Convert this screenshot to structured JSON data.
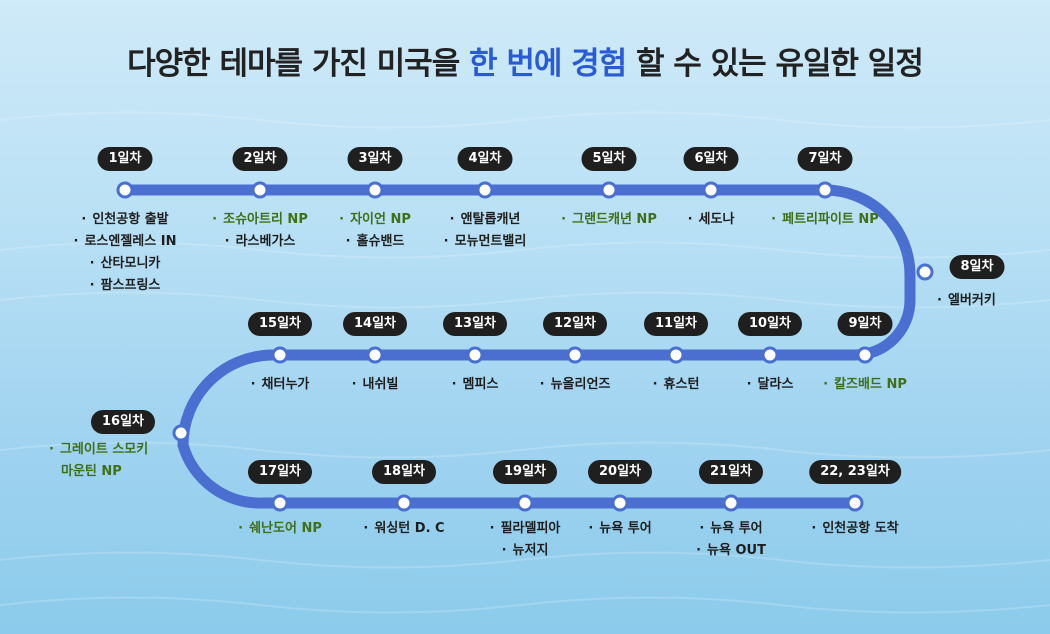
{
  "title": {
    "part1": "다양한 테마를 가진 미국을 ",
    "highlight": "한 번에 경험",
    "part2": " 할 수 있는 유일한 일정"
  },
  "colors": {
    "route": "#4a6fd0",
    "badge": "#1f1f1f",
    "national_park_text": "#3f6f16",
    "highlight": "#2a5bd7"
  },
  "stops": [
    {
      "day": "1일차",
      "places": [
        {
          "name": "인천공항 출발"
        },
        {
          "name": "로스엔젤레스 IN"
        },
        {
          "name": "산타모니카"
        },
        {
          "name": "팜스프링스"
        }
      ]
    },
    {
      "day": "2일차",
      "places": [
        {
          "name": "조슈아트리 NP",
          "np": true
        },
        {
          "name": "라스베가스"
        }
      ]
    },
    {
      "day": "3일차",
      "places": [
        {
          "name": "자이언 NP",
          "np": true
        },
        {
          "name": "홀슈밴드"
        }
      ]
    },
    {
      "day": "4일차",
      "places": [
        {
          "name": "앤탈롭캐년"
        },
        {
          "name": "모뉴먼트밸리"
        }
      ]
    },
    {
      "day": "5일차",
      "places": [
        {
          "name": "그랜드캐년 NP",
          "np": true
        }
      ]
    },
    {
      "day": "6일차",
      "places": [
        {
          "name": "세도나"
        }
      ]
    },
    {
      "day": "7일차",
      "places": [
        {
          "name": "페트리파이트 NP",
          "np": true
        }
      ]
    },
    {
      "day": "8일차",
      "places": [
        {
          "name": "엘버커키"
        }
      ]
    },
    {
      "day": "9일차",
      "places": [
        {
          "name": "칼즈배드 NP",
          "np": true
        }
      ]
    },
    {
      "day": "10일차",
      "places": [
        {
          "name": "달라스"
        }
      ]
    },
    {
      "day": "11일차",
      "places": [
        {
          "name": "휴스턴"
        }
      ]
    },
    {
      "day": "12일차",
      "places": [
        {
          "name": "뉴올리언즈"
        }
      ]
    },
    {
      "day": "13일차",
      "places": [
        {
          "name": "멤피스"
        }
      ]
    },
    {
      "day": "14일차",
      "places": [
        {
          "name": "내쉬빌"
        }
      ]
    },
    {
      "day": "15일차",
      "places": [
        {
          "name": "채터누가"
        }
      ]
    },
    {
      "day": "16일차",
      "places": [
        {
          "name": "그레이트 스모키",
          "np": true
        },
        {
          "name": "마운틴 NP",
          "np": true,
          "nobullet": true
        }
      ]
    },
    {
      "day": "17일차",
      "places": [
        {
          "name": "쉐난도어 NP",
          "np": true
        }
      ]
    },
    {
      "day": "18일차",
      "places": [
        {
          "name": "워싱턴 D. C"
        }
      ]
    },
    {
      "day": "19일차",
      "places": [
        {
          "name": "필라델피아"
        },
        {
          "name": "뉴저지"
        }
      ]
    },
    {
      "day": "20일차",
      "places": [
        {
          "name": "뉴욕 투어"
        }
      ]
    },
    {
      "day": "21일차",
      "places": [
        {
          "name": "뉴욕 투어"
        },
        {
          "name": "뉴욕 OUT"
        }
      ]
    },
    {
      "day": "22, 23일차",
      "places": [
        {
          "name": "인천공항 도착"
        }
      ]
    }
  ]
}
